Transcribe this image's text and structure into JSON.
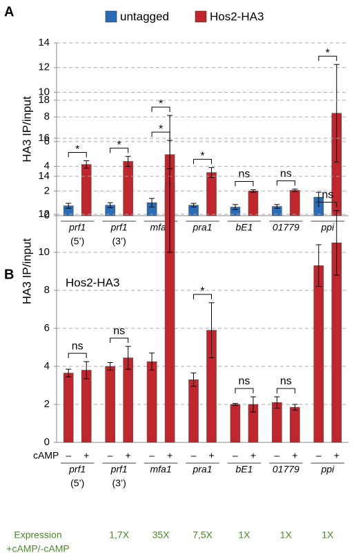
{
  "chart_data": [
    {
      "type": "bar",
      "panel": "A",
      "ylabel": "HA3 IP/input",
      "categories": [
        "prf1",
        "prf1",
        "mfa1",
        "pra1",
        "bE1",
        "01779",
        "ppi"
      ],
      "category_sublabels": [
        "(5’)",
        "(3’)",
        null,
        null,
        null,
        null,
        null
      ],
      "series": [
        {
          "name": "untagged",
          "color": "#2a6cb5",
          "values": [
            0.8,
            0.85,
            1.05,
            0.85,
            0.7,
            0.75,
            1.5
          ],
          "errors": [
            0.2,
            0.2,
            0.35,
            0.15,
            0.2,
            0.15,
            0.4
          ]
        },
        {
          "name": "Hos2-HA3",
          "color": "#c0272d",
          "values": [
            4.15,
            4.4,
            4.95,
            3.5,
            2.0,
            2.05,
            8.3
          ],
          "errors": [
            0.3,
            0.4,
            1.15,
            0.4,
            0.1,
            0.1,
            3.95
          ]
        }
      ],
      "annotations": [
        "*",
        "*",
        "*",
        "*",
        "ns",
        "ns",
        "*"
      ],
      "ylim": [
        0,
        14
      ],
      "yticks": [
        0,
        2,
        4,
        6,
        8,
        10,
        12,
        14
      ],
      "grid": true,
      "legend": "top"
    },
    {
      "type": "bar",
      "panel": "B",
      "title": "Hos2-HA3",
      "ylabel": "HA3 IP/input",
      "categories": [
        "prf1",
        "prf1",
        "mfa1",
        "pra1",
        "bE1",
        "01779",
        "ppi"
      ],
      "category_sublabels": [
        "(5’)",
        "(3’)",
        null,
        null,
        null,
        null,
        null
      ],
      "condition_label": "cAMP",
      "series": [
        {
          "name": "–",
          "color": "#c0272d",
          "values": [
            3.65,
            4.0,
            4.25,
            3.3,
            2.0,
            2.1,
            9.3
          ],
          "errors": [
            0.2,
            0.2,
            0.45,
            0.35,
            0.05,
            0.3,
            1.1
          ]
        },
        {
          "name": "+",
          "color": "#c0272d",
          "values": [
            3.8,
            4.45,
            13.6,
            5.9,
            2.0,
            1.85,
            10.5
          ],
          "errors": [
            0.45,
            0.6,
            3.6,
            1.45,
            0.4,
            0.15,
            1.7
          ]
        }
      ],
      "annotations": [
        "ns",
        "ns",
        "*",
        "*",
        "ns",
        "ns",
        "ns"
      ],
      "expression_label": [
        "Expression",
        "+cAMP/-cAMP"
      ],
      "expression_labels": [
        null,
        "1,7X",
        "35X",
        "7,5X",
        "1X",
        "1X",
        "1X"
      ],
      "ylim": [
        0,
        18
      ],
      "yticks": [
        0,
        2,
        4,
        6,
        8,
        10,
        12,
        14,
        16,
        18
      ],
      "grid": true
    }
  ]
}
